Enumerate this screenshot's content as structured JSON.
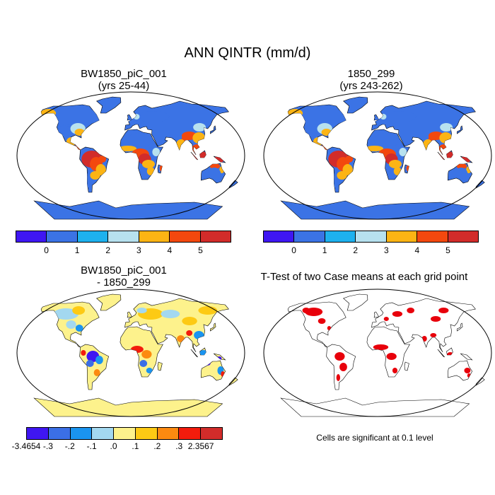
{
  "title": "ANN QINTR (mm/d)",
  "panels": [
    {
      "title_line1": "BW1850_piC_001",
      "title_line2": "(yrs 25-44)"
    },
    {
      "title_line1": "1850_299",
      "title_line2": "(yrs 243-262)"
    },
    {
      "title_line1": "BW1850_piC_001",
      "title_line2": "- 1850_299"
    },
    {
      "title_line1": "T-Test of two Case means at each grid point"
    }
  ],
  "colorbar_main": {
    "colors": [
      "#3f16f2",
      "#3b73e5",
      "#1eb1ee",
      "#b7e1ef",
      "#fcb414",
      "#f3480e",
      "#d22c2a"
    ],
    "labels": [
      "0",
      "1",
      "2",
      "3",
      "4",
      "5"
    ]
  },
  "colorbar_diff": {
    "colors": [
      "#3f16f2",
      "#3b6fe6",
      "#1a94f0",
      "#a3d8f0",
      "#fdf28c",
      "#fdca14",
      "#fc8a10",
      "#f31c0c",
      "#d22c2a"
    ],
    "labels": [
      "-3.4654",
      "-.3",
      "-.2",
      "-.1",
      ".0",
      ".1",
      ".2",
      ".3",
      "2.3567"
    ]
  },
  "significance_note": "Cells are significant at 0.1 level",
  "significance_color": "#e8000b",
  "land_outline_color": "#000000"
}
